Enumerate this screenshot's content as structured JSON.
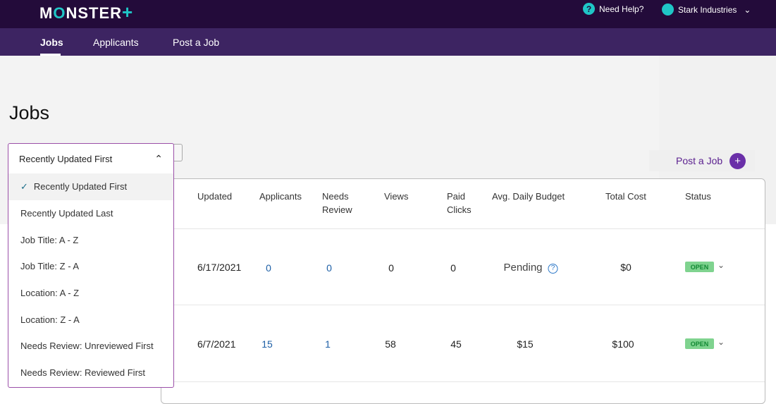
{
  "header": {
    "logo": "MONSTER+",
    "help": "Need Help?",
    "account": "Stark Industries"
  },
  "nav": {
    "items": [
      "Jobs",
      "Applicants",
      "Post a Job"
    ],
    "active": "Jobs"
  },
  "page": {
    "title": "Jobs",
    "post_button": "Post a Job"
  },
  "sort": {
    "selected": "Recently Updated First",
    "options": [
      "Recently Updated First",
      "Recently Updated Last",
      "Job Title: A - Z",
      "Job Title: Z - A",
      "Location: A - Z",
      "Location: Z - A",
      "Needs Review: Unreviewed First",
      "Needs Review: Reviewed First"
    ]
  },
  "table": {
    "headers": [
      "Updated",
      "Applicants",
      "Needs Review",
      "Views",
      "Paid Clicks",
      "Avg. Daily Budget",
      "Total Cost",
      "Status"
    ],
    "rows": [
      {
        "updated": "6/17/2021",
        "applicants": "0",
        "needs_review": "0",
        "views": "0",
        "paid_clicks": "0",
        "budget": "Pending",
        "total_cost": "$0",
        "status": "OPEN"
      },
      {
        "updated": "6/7/2021",
        "applicants": "15",
        "needs_review": "1",
        "views": "58",
        "paid_clicks": "45",
        "budget": "$15",
        "total_cost": "$100",
        "status": "OPEN"
      }
    ]
  },
  "colors": {
    "header": "#230b3a",
    "nav": "#3d2462",
    "accent": "#6a2fa8",
    "open_badge": "#7fd38f",
    "link": "#1d5fa6"
  }
}
